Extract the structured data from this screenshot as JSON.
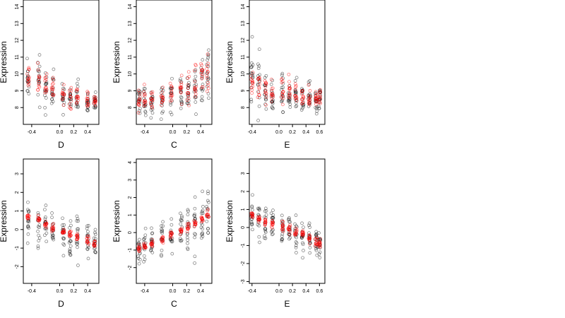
{
  "chart_data": [
    {
      "type": "scatter",
      "xlabel": "D",
      "ylabel": "Expression",
      "xlim": [
        -0.52,
        0.56
      ],
      "ylim": [
        7.0,
        14.4
      ],
      "xticks": [
        "-0.4",
        "0.0",
        "0.2",
        "0.4"
      ],
      "xtick_values": [
        -0.4,
        0.0,
        0.2,
        0.4
      ],
      "yticks": [
        "8",
        "9",
        "10",
        "11",
        "12",
        "13",
        "14"
      ],
      "ytick_values": [
        8,
        9,
        10,
        11,
        12,
        13,
        14
      ],
      "x_levels": [
        -0.45,
        -0.3,
        -0.2,
        -0.1,
        0.05,
        0.15,
        0.25,
        0.4,
        0.5
      ],
      "series": [
        {
          "color": "#000000",
          "means": [
            9.4,
            9.5,
            9.0,
            8.9,
            8.6,
            8.4,
            8.6,
            8.2,
            8.2
          ],
          "spread": [
            0.9,
            1.5,
            1.3,
            1.2,
            0.9,
            0.8,
            1.1,
            0.7,
            0.6
          ]
        },
        {
          "color": "#ff0000",
          "means": [
            9.7,
            9.5,
            9.3,
            9.0,
            8.8,
            8.7,
            8.7,
            8.5,
            8.4
          ],
          "spread": [
            0.7,
            0.9,
            0.8,
            0.7,
            0.6,
            0.6,
            0.6,
            0.5,
            0.5
          ]
        }
      ]
    },
    {
      "type": "scatter",
      "xlabel": "C",
      "ylabel": "Expression",
      "xlim": [
        -0.52,
        0.56
      ],
      "ylim": [
        7.0,
        14.4
      ],
      "xticks": [
        "-0.4",
        "0.0",
        "0.2",
        "0.4"
      ],
      "xtick_values": [
        -0.4,
        0.0,
        0.2,
        0.4
      ],
      "yticks": [
        "8",
        "9",
        "10",
        "11",
        "12",
        "13",
        "14"
      ],
      "ytick_values": [
        8,
        9,
        10,
        11,
        12,
        13,
        14
      ],
      "x_levels": [
        -0.48,
        -0.4,
        -0.3,
        -0.15,
        -0.02,
        0.12,
        0.22,
        0.32,
        0.42,
        0.5
      ],
      "series": [
        {
          "color": "#000000",
          "means": [
            8.3,
            8.4,
            8.3,
            8.5,
            8.6,
            8.8,
            9.0,
            9.0,
            9.6,
            10.2
          ],
          "spread": [
            0.8,
            0.8,
            0.6,
            0.8,
            0.9,
            1.0,
            1.2,
            1.3,
            1.6,
            1.8
          ]
        },
        {
          "color": "#ff0000",
          "means": [
            8.4,
            8.5,
            8.5,
            8.6,
            8.8,
            8.9,
            9.1,
            9.3,
            9.7,
            10.0
          ],
          "spread": [
            0.6,
            0.6,
            0.5,
            0.6,
            0.6,
            0.7,
            0.8,
            0.9,
            1.0,
            1.1
          ]
        }
      ]
    },
    {
      "type": "scatter",
      "xlabel": "E",
      "ylabel": "Expression",
      "xlim": [
        -0.44,
        0.68
      ],
      "ylim": [
        7.0,
        14.4
      ],
      "xticks": [
        "-0.4",
        "0.0",
        "0.2",
        "0.4",
        "0.6"
      ],
      "xtick_values": [
        -0.4,
        0.0,
        0.2,
        0.4,
        0.6
      ],
      "yticks": [
        "8",
        "9",
        "10",
        "11",
        "12",
        "13",
        "14"
      ],
      "ytick_values": [
        8,
        9,
        10,
        11,
        12,
        13,
        14
      ],
      "x_levels": [
        -0.4,
        -0.3,
        -0.2,
        -0.1,
        0.05,
        0.15,
        0.25,
        0.35,
        0.45,
        0.55,
        0.6
      ],
      "series": [
        {
          "color": "#000000",
          "means": [
            9.8,
            9.4,
            9.0,
            8.8,
            8.9,
            8.6,
            8.7,
            8.5,
            8.6,
            8.5,
            8.6
          ],
          "spread": [
            1.5,
            1.3,
            1.1,
            1.0,
            1.3,
            0.9,
            1.0,
            0.8,
            0.9,
            0.7,
            0.6
          ]
        },
        {
          "color": "#ff0000",
          "means": [
            9.6,
            9.3,
            9.1,
            8.9,
            9.1,
            8.9,
            8.8,
            8.7,
            8.7,
            8.6,
            8.6
          ],
          "spread": [
            0.9,
            0.8,
            0.7,
            0.7,
            0.9,
            0.7,
            0.7,
            0.6,
            0.6,
            0.5,
            0.5
          ]
        }
      ]
    },
    {
      "type": "scatter",
      "xlabel": "D",
      "ylabel": "Expression",
      "xlim": [
        -0.52,
        0.56
      ],
      "ylim": [
        -2.9,
        3.8
      ],
      "xticks": [
        "-0.4",
        "0.0",
        "0.2",
        "0.4"
      ],
      "xtick_values": [
        -0.4,
        0.0,
        0.2,
        0.4
      ],
      "yticks": [
        "-2",
        "-1",
        "0",
        "1",
        "2",
        "3"
      ],
      "ytick_values": [
        -2,
        -1,
        0,
        1,
        2,
        3
      ],
      "x_levels": [
        -0.45,
        -0.3,
        -0.2,
        -0.1,
        0.05,
        0.15,
        0.25,
        0.4,
        0.5
      ],
      "series": [
        {
          "color": "#000000",
          "means": [
            0.4,
            0.3,
            0.1,
            0.0,
            -0.2,
            -0.3,
            -0.3,
            -0.6,
            -0.7
          ],
          "spread": [
            1.0,
            1.2,
            1.0,
            1.0,
            0.9,
            0.9,
            1.0,
            0.8,
            0.8
          ]
        },
        {
          "color": "#ff0000",
          "means": [
            0.7,
            0.5,
            0.3,
            0.1,
            -0.1,
            -0.2,
            -0.4,
            -0.6,
            -0.8
          ],
          "spread": [
            0.2,
            0.2,
            0.2,
            0.2,
            0.2,
            0.2,
            0.2,
            0.2,
            0.2
          ]
        }
      ]
    },
    {
      "type": "scatter",
      "xlabel": "C",
      "ylabel": "Expression",
      "xlim": [
        -0.52,
        0.56
      ],
      "ylim": [
        -2.9,
        4.2
      ],
      "xticks": [
        "-0.4",
        "0.0",
        "0.2",
        "0.4"
      ],
      "xtick_values": [
        -0.4,
        0.0,
        0.2,
        0.4
      ],
      "yticks": [
        "-2",
        "-1",
        "0",
        "1",
        "2",
        "3",
        "4"
      ],
      "ytick_values": [
        -2,
        -1,
        0,
        1,
        2,
        3,
        4
      ],
      "x_levels": [
        -0.48,
        -0.4,
        -0.3,
        -0.15,
        -0.02,
        0.12,
        0.22,
        0.32,
        0.42,
        0.5
      ],
      "series": [
        {
          "color": "#000000",
          "means": [
            -1.0,
            -0.8,
            -0.6,
            -0.3,
            -0.1,
            0.1,
            0.3,
            0.4,
            0.7,
            0.9
          ],
          "spread": [
            0.7,
            0.8,
            0.7,
            0.8,
            0.9,
            1.0,
            1.1,
            1.2,
            1.4,
            1.6
          ]
        },
        {
          "color": "#ff0000",
          "means": [
            -0.9,
            -0.8,
            -0.6,
            -0.4,
            -0.1,
            0.1,
            0.3,
            0.5,
            0.8,
            1.0
          ],
          "spread": [
            0.2,
            0.2,
            0.2,
            0.2,
            0.2,
            0.2,
            0.2,
            0.2,
            0.2,
            0.25
          ]
        }
      ]
    },
    {
      "type": "scatter",
      "xlabel": "E",
      "ylabel": "Expression",
      "xlim": [
        -0.44,
        0.68
      ],
      "ylim": [
        -3.1,
        3.8
      ],
      "xticks": [
        "-0.4",
        "0.0",
        "0.2",
        "0.4",
        "0.6"
      ],
      "xtick_values": [
        -0.4,
        0.0,
        0.2,
        0.4,
        0.6
      ],
      "yticks": [
        "-3",
        "-2",
        "-1",
        "0",
        "1",
        "2",
        "3"
      ],
      "ytick_values": [
        -3,
        -2,
        -1,
        0,
        1,
        2,
        3
      ],
      "x_levels": [
        -0.4,
        -0.3,
        -0.2,
        -0.1,
        0.05,
        0.15,
        0.25,
        0.35,
        0.45,
        0.55,
        0.6
      ],
      "series": [
        {
          "color": "#000000",
          "means": [
            0.6,
            0.4,
            0.3,
            0.2,
            0.0,
            -0.1,
            -0.3,
            -0.4,
            -0.5,
            -0.8,
            -0.9
          ],
          "spread": [
            1.1,
            1.0,
            0.9,
            0.9,
            1.0,
            0.8,
            0.8,
            0.7,
            0.7,
            0.6,
            0.6
          ]
        },
        {
          "color": "#ff0000",
          "means": [
            0.7,
            0.5,
            0.3,
            0.2,
            0.0,
            -0.1,
            -0.3,
            -0.4,
            -0.6,
            -0.8,
            -0.9
          ],
          "spread": [
            0.2,
            0.2,
            0.2,
            0.2,
            0.2,
            0.2,
            0.2,
            0.2,
            0.2,
            0.2,
            0.2
          ]
        }
      ]
    }
  ]
}
